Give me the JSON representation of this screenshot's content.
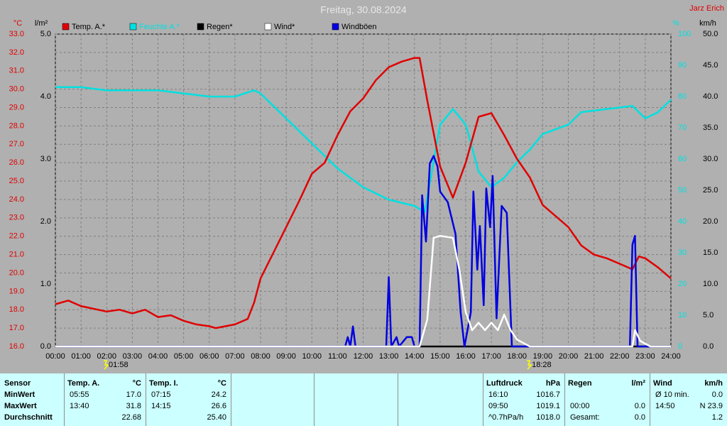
{
  "chart_data": {
    "type": "line",
    "title": "Freitag, 30.08.2024",
    "author": "Jarz Erich",
    "ylabel": "°C",
    "y3label": "l/m²",
    "y2label": "%",
    "y4label": "km/h",
    "grid": true,
    "xlim": [
      0,
      24
    ],
    "xticks": [
      {
        "value": 0,
        "label": "00:00"
      },
      {
        "value": 1,
        "label": "01:00"
      },
      {
        "value": 2,
        "label": "02:00"
      },
      {
        "value": 3,
        "label": "03:00"
      },
      {
        "value": 4,
        "label": "04:00"
      },
      {
        "value": 5,
        "label": "05:00"
      },
      {
        "value": 6,
        "label": "06:00"
      },
      {
        "value": 7,
        "label": "07:00"
      },
      {
        "value": 8,
        "label": "08:00"
      },
      {
        "value": 9,
        "label": "09:00"
      },
      {
        "value": 10,
        "label": "10:00"
      },
      {
        "value": 11,
        "label": "11:00"
      },
      {
        "value": 12,
        "label": "12:00"
      },
      {
        "value": 13,
        "label": "13:00"
      },
      {
        "value": 14,
        "label": "14:00"
      },
      {
        "value": 15,
        "label": "15:00"
      },
      {
        "value": 16,
        "label": "16:00"
      },
      {
        "value": 17,
        "label": "17:00"
      },
      {
        "value": 18,
        "label": "18:00"
      },
      {
        "value": 19,
        "label": "19:00"
      },
      {
        "value": 20,
        "label": "20:00"
      },
      {
        "value": 21,
        "label": "21:00"
      },
      {
        "value": 22,
        "label": "22:00"
      },
      {
        "value": 23,
        "label": "23:00"
      },
      {
        "value": 24,
        "label": "24:00"
      }
    ],
    "ylim": [
      16,
      33
    ],
    "yticks": [
      {
        "value": 16,
        "label": "16.0"
      },
      {
        "value": 17,
        "label": "17.0"
      },
      {
        "value": 18,
        "label": "18.0"
      },
      {
        "value": 19,
        "label": "19.0"
      },
      {
        "value": 20,
        "label": "20.0"
      },
      {
        "value": 21,
        "label": "21.0"
      },
      {
        "value": 22,
        "label": "22.0"
      },
      {
        "value": 23,
        "label": "23.0"
      },
      {
        "value": 24,
        "label": "24.0"
      },
      {
        "value": 25,
        "label": "25.0"
      },
      {
        "value": 26,
        "label": "26.0"
      },
      {
        "value": 27,
        "label": "27.0"
      },
      {
        "value": 28,
        "label": "28.0"
      },
      {
        "value": 29,
        "label": "29.0"
      },
      {
        "value": 30,
        "label": "30.0"
      },
      {
        "value": 31,
        "label": "31.0"
      },
      {
        "value": 32,
        "label": "32.0"
      },
      {
        "value": 33,
        "label": "33.0"
      }
    ],
    "y3lim": [
      0,
      5
    ],
    "y3ticks": [
      {
        "value": 0,
        "label": "0.0"
      },
      {
        "value": 1,
        "label": "1.0"
      },
      {
        "value": 2,
        "label": "2.0"
      },
      {
        "value": 3,
        "label": "3.0"
      },
      {
        "value": 4,
        "label": "4.0"
      },
      {
        "value": 5,
        "label": "5.0"
      }
    ],
    "y2lim": [
      0,
      100
    ],
    "y2ticks": [
      0,
      10,
      20,
      30,
      40,
      50,
      60,
      70,
      80,
      90,
      100
    ],
    "y4lim": [
      0,
      50
    ],
    "y4ticks": [
      {
        "value": 0,
        "label": "0.0"
      },
      {
        "value": 5,
        "label": "5.0"
      },
      {
        "value": 10,
        "label": "10.0"
      },
      {
        "value": 15,
        "label": "15.0"
      },
      {
        "value": 20,
        "label": "20.0"
      },
      {
        "value": 25,
        "label": "25.0"
      },
      {
        "value": 30,
        "label": "30.0"
      },
      {
        "value": 35,
        "label": "35.0"
      },
      {
        "value": 40,
        "label": "40.0"
      },
      {
        "value": 45,
        "label": "45.0"
      },
      {
        "value": 50,
        "label": "50.0"
      }
    ],
    "markers": [
      {
        "label": "01:58",
        "x": 1.967
      },
      {
        "label": "18:28",
        "x": 18.467
      }
    ],
    "series": [
      {
        "name": "Temp. A.*",
        "color": "#e00000",
        "axis": "y",
        "x": [
          0,
          0.5,
          1,
          2,
          2.5,
          3,
          3.5,
          4,
          4.5,
          5,
          5.5,
          6,
          6.25,
          7,
          7.5,
          7.75,
          8,
          8.5,
          9,
          9.5,
          10,
          10.5,
          11,
          11.5,
          12,
          12.5,
          13,
          13.5,
          14,
          14.2,
          14.5,
          15,
          15.5,
          16,
          16.5,
          17,
          17.5,
          18,
          18.5,
          19,
          19.5,
          20,
          20.5,
          21,
          21.5,
          22,
          22.5,
          22.75,
          23,
          23.5,
          24
        ],
        "values": [
          18.3,
          18.5,
          18.2,
          17.9,
          18.0,
          17.8,
          18.0,
          17.6,
          17.7,
          17.4,
          17.2,
          17.1,
          17.0,
          17.2,
          17.5,
          18.4,
          19.7,
          21.1,
          22.5,
          23.9,
          25.4,
          26.0,
          27.5,
          28.8,
          29.5,
          30.5,
          31.2,
          31.5,
          31.7,
          31.7,
          29.4,
          25.8,
          24.1,
          26.0,
          28.5,
          28.7,
          27.5,
          26.2,
          25.2,
          23.7,
          23.1,
          22.5,
          21.5,
          21.0,
          20.8,
          20.5,
          20.2,
          20.9,
          20.8,
          20.3,
          19.7
        ]
      },
      {
        "name": "Feuchte A.*",
        "color": "#00e0e0",
        "axis": "y2",
        "x": [
          0,
          1,
          2,
          3,
          4,
          5,
          6,
          7,
          7.75,
          8,
          9,
          10,
          11,
          12,
          13,
          14,
          14.4,
          15,
          15.5,
          16,
          16.5,
          17,
          17.5,
          18,
          18.5,
          19,
          20,
          20.5,
          21.5,
          22.5,
          23,
          23.5,
          24
        ],
        "values": [
          83,
          83,
          82,
          82,
          82,
          81,
          80,
          80,
          82,
          81,
          73,
          65,
          57,
          51,
          47,
          45,
          43,
          71,
          76,
          71,
          56,
          51,
          54,
          59,
          63,
          68,
          71,
          75,
          76,
          77,
          73,
          75,
          79
        ]
      },
      {
        "name": "Regen*",
        "color": "#000000",
        "axis": "y3",
        "x": [
          0,
          24
        ],
        "values": [
          0,
          0
        ]
      },
      {
        "name": "Wind*",
        "color": "#ffffff",
        "axis": "y4",
        "x": [
          0,
          14.2,
          14.5,
          14.75,
          15,
          15.5,
          15.75,
          16,
          16.25,
          16.5,
          16.75,
          17,
          17.25,
          17.5,
          17.75,
          18,
          18.5,
          22.5,
          22.6,
          22.8,
          23.2,
          24
        ],
        "values": [
          0,
          0,
          4.3,
          17.4,
          17.7,
          17.4,
          12.3,
          5.5,
          2.6,
          3.8,
          2.6,
          3.8,
          2.6,
          5.1,
          2.6,
          1.1,
          0,
          0,
          2.6,
          0.9,
          0,
          0
        ]
      },
      {
        "name": "Windböen",
        "color": "#0000e0",
        "axis": "y4",
        "x": [
          0,
          11.3,
          11.4,
          11.5,
          11.6,
          11.7,
          12.9,
          13,
          13.1,
          13.3,
          13.4,
          13.7,
          13.9,
          14,
          14.2,
          14.3,
          14.45,
          14.6,
          14.75,
          14.9,
          15,
          15.3,
          15.6,
          15.8,
          15.95,
          16.2,
          16.3,
          16.45,
          16.55,
          16.7,
          16.8,
          16.95,
          17.05,
          17.2,
          17.4,
          17.6,
          17.8,
          22.4,
          22.5,
          22.6,
          22.7,
          24
        ],
        "values": [
          0,
          0,
          1.5,
          0,
          3.2,
          0,
          0,
          11.1,
          0,
          1.5,
          0,
          1.5,
          1.5,
          0,
          0,
          24.2,
          16.8,
          29.3,
          30.5,
          28.8,
          24.8,
          23.1,
          18.0,
          5.5,
          0,
          5.5,
          24.8,
          12.3,
          19.3,
          6.6,
          25.3,
          19.1,
          27.3,
          4.5,
          22.5,
          21.4,
          0,
          0,
          16.3,
          17.7,
          0,
          0
        ]
      }
    ]
  },
  "stats": {
    "row_labels": [
      "Sensor",
      "MinWert",
      "MaxWert",
      "Durchschnitt"
    ],
    "groups": [
      {
        "title": "Temp. A.",
        "unit": "°C",
        "rows": [
          {
            "time": "05:55",
            "value": "17.0"
          },
          {
            "time": "13:40",
            "value": "31.8"
          },
          {
            "value": "22.68"
          }
        ]
      },
      {
        "title": "Temp. I.",
        "unit": "°C",
        "rows": [
          {
            "time": "07:15",
            "value": "24.2"
          },
          {
            "time": "14:15",
            "value": "26.6"
          },
          {
            "value": "25.40"
          }
        ]
      },
      {
        "title": "Luftdruck",
        "unit": "hPa",
        "rows": [
          {
            "time": "16:10",
            "value": "1016.7"
          },
          {
            "time": "09:50",
            "value": "1019.1"
          },
          {
            "time": "^0.7hPa/h",
            "value": "1018.0"
          }
        ]
      },
      {
        "title": "Regen",
        "unit": "l/m²",
        "rows": [
          null,
          {
            "time": "00:00",
            "value": "0.0"
          },
          {
            "time": "Gesamt:",
            "value": "0.0"
          }
        ]
      },
      {
        "title": "Wind",
        "unit": "km/h",
        "rows": [
          {
            "time": "Ø 10 min.",
            "value": "0.0"
          },
          {
            "time": "14:50",
            "value": "N 23.9"
          },
          {
            "value": "1.2"
          }
        ]
      }
    ]
  }
}
